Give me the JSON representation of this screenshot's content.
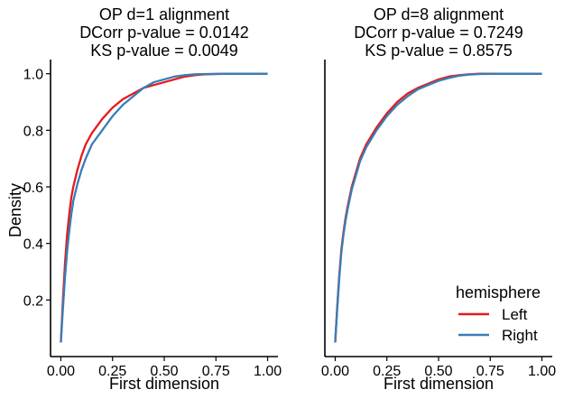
{
  "chart_data": [
    {
      "type": "line",
      "title_lines": [
        "OP d=1 alignment",
        "DCorr p-value = 0.0142",
        "KS p-value = 0.0049"
      ],
      "xlabel": "First dimension",
      "ylabel": "Density",
      "xlim": [
        -0.05,
        1.05
      ],
      "ylim": [
        0.0,
        1.05
      ],
      "xticks": [
        0.0,
        0.25,
        0.5,
        0.75,
        1.0
      ],
      "xtick_labels": [
        "0.00",
        "0.25",
        "0.50",
        "0.75",
        "1.00"
      ],
      "yticks": [
        0.2,
        0.4,
        0.6,
        0.8,
        1.0
      ],
      "ytick_labels": [
        "0.2",
        "0.4",
        "0.6",
        "0.8",
        "1.0"
      ],
      "series": [
        {
          "name": "Left",
          "color": "#e41a1c",
          "x": [
            0.0,
            0.01,
            0.02,
            0.03,
            0.04,
            0.05,
            0.06,
            0.08,
            0.1,
            0.12,
            0.15,
            0.2,
            0.25,
            0.3,
            0.35,
            0.4,
            0.45,
            0.5,
            0.55,
            0.6,
            0.65,
            0.7,
            0.8,
            0.9,
            1.0
          ],
          "y": [
            0.05,
            0.2,
            0.33,
            0.43,
            0.5,
            0.56,
            0.6,
            0.66,
            0.71,
            0.75,
            0.79,
            0.84,
            0.88,
            0.91,
            0.93,
            0.95,
            0.96,
            0.97,
            0.98,
            0.99,
            0.995,
            0.998,
            1.0,
            1.0,
            1.0
          ]
        },
        {
          "name": "Right",
          "color": "#377eb8",
          "x": [
            0.0,
            0.01,
            0.02,
            0.03,
            0.04,
            0.05,
            0.06,
            0.08,
            0.1,
            0.12,
            0.15,
            0.2,
            0.25,
            0.3,
            0.35,
            0.4,
            0.45,
            0.5,
            0.55,
            0.6,
            0.65,
            0.7,
            0.8,
            0.9,
            1.0
          ],
          "y": [
            0.05,
            0.17,
            0.28,
            0.37,
            0.44,
            0.5,
            0.55,
            0.61,
            0.66,
            0.7,
            0.75,
            0.8,
            0.85,
            0.89,
            0.92,
            0.95,
            0.97,
            0.98,
            0.99,
            0.995,
            0.998,
            0.999,
            1.0,
            1.0,
            1.0
          ]
        }
      ]
    },
    {
      "type": "line",
      "title_lines": [
        "OP d=8 alignment",
        "DCorr p-value = 0.7249",
        "KS p-value = 0.8575"
      ],
      "xlabel": "First dimension",
      "ylabel": "",
      "xlim": [
        -0.05,
        1.05
      ],
      "ylim": [
        0.0,
        1.05
      ],
      "xticks": [
        0.0,
        0.25,
        0.5,
        0.75,
        1.0
      ],
      "xtick_labels": [
        "0.00",
        "0.25",
        "0.50",
        "0.75",
        "1.00"
      ],
      "yticks": [],
      "ytick_labels": [],
      "series": [
        {
          "name": "Left",
          "color": "#e41a1c",
          "x": [
            0.0,
            0.01,
            0.02,
            0.03,
            0.04,
            0.05,
            0.06,
            0.08,
            0.1,
            0.12,
            0.15,
            0.2,
            0.25,
            0.3,
            0.35,
            0.4,
            0.45,
            0.5,
            0.55,
            0.6,
            0.65,
            0.7,
            0.8,
            0.9,
            1.0
          ],
          "y": [
            0.05,
            0.18,
            0.29,
            0.38,
            0.44,
            0.49,
            0.53,
            0.6,
            0.65,
            0.7,
            0.75,
            0.81,
            0.86,
            0.9,
            0.93,
            0.95,
            0.965,
            0.98,
            0.99,
            0.995,
            0.998,
            1.0,
            1.0,
            1.0,
            1.0
          ]
        },
        {
          "name": "Right",
          "color": "#377eb8",
          "x": [
            0.0,
            0.01,
            0.02,
            0.03,
            0.04,
            0.05,
            0.06,
            0.08,
            0.1,
            0.12,
            0.15,
            0.2,
            0.25,
            0.3,
            0.35,
            0.4,
            0.45,
            0.5,
            0.55,
            0.6,
            0.65,
            0.7,
            0.8,
            0.9,
            1.0
          ],
          "y": [
            0.05,
            0.17,
            0.28,
            0.37,
            0.43,
            0.48,
            0.52,
            0.59,
            0.64,
            0.69,
            0.74,
            0.8,
            0.85,
            0.89,
            0.92,
            0.945,
            0.96,
            0.975,
            0.985,
            0.993,
            0.997,
            0.999,
            1.0,
            1.0,
            1.0
          ]
        }
      ]
    }
  ],
  "legend": {
    "title": "hemisphere",
    "placement": "lower-right",
    "entries": [
      {
        "label": "Left",
        "color": "#e41a1c"
      },
      {
        "label": "Right",
        "color": "#377eb8"
      }
    ]
  }
}
